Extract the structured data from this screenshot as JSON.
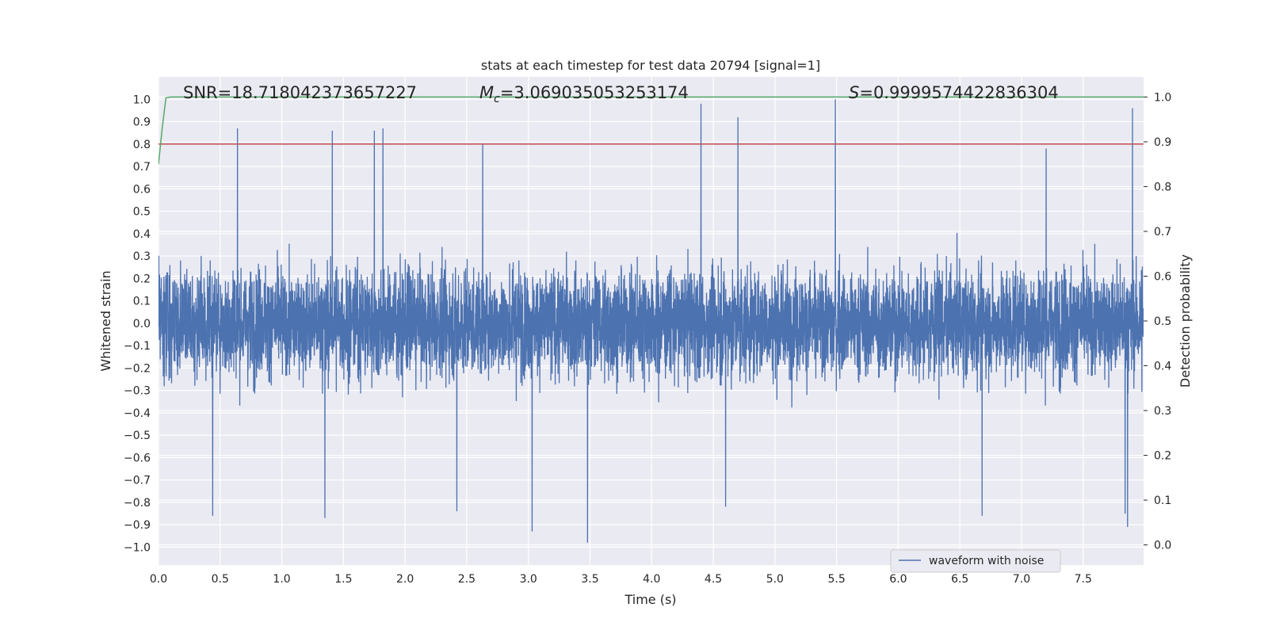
{
  "chart_data": {
    "type": "line",
    "title": "stats at each timestep for test data 20794 [signal=1]",
    "xlabel": "Time (s)",
    "ylabel": "Whitened strain",
    "y2label": "Detection probability",
    "xlim": [
      0.0,
      7.99
    ],
    "ylim": [
      -1.08,
      1.1
    ],
    "y2lim": [
      -0.045,
      1.045
    ],
    "xticks": [
      "0.0",
      "0.5",
      "1.0",
      "1.5",
      "2.0",
      "2.5",
      "3.0",
      "3.5",
      "4.0",
      "4.5",
      "5.0",
      "5.5",
      "6.0",
      "6.5",
      "7.0",
      "7.5"
    ],
    "yticks": [
      "1.0",
      "0.9",
      "0.8",
      "0.7",
      "0.6",
      "0.5",
      "0.4",
      "0.3",
      "0.2",
      "0.1",
      "0.0",
      "−0.1",
      "−0.2",
      "−0.3",
      "−0.4",
      "−0.5",
      "−0.6",
      "−0.7",
      "−0.8",
      "−0.9",
      "−1.0"
    ],
    "y2ticks": [
      "1.0",
      "0.9",
      "0.8",
      "0.7",
      "0.6",
      "0.5",
      "0.4",
      "0.3",
      "0.2",
      "0.1",
      "0.0"
    ],
    "grid": true,
    "legend_placement": "lower-right",
    "annotations": {
      "snr": "SNR=18.718042373657227",
      "mc_symbol": "M",
      "mc_sub": "c",
      "mc_value": "=3.069035053253174",
      "s_symbol": "S",
      "s_value": "=0.9999574422836304"
    },
    "series": [
      {
        "name": "waveform with noise",
        "color": "#4c72b0",
        "axis": "left",
        "envelope": "dense noisy whitened strain, bulk within about ±0.4",
        "peaks": [
          {
            "x": 0.64,
            "y": 0.87
          },
          {
            "x": 1.41,
            "y": 0.86
          },
          {
            "x": 1.75,
            "y": 0.86
          },
          {
            "x": 1.82,
            "y": 0.87
          },
          {
            "x": 2.63,
            "y": 0.8
          },
          {
            "x": 4.4,
            "y": 0.98
          },
          {
            "x": 4.7,
            "y": 0.92
          },
          {
            "x": 5.49,
            "y": 1.0
          },
          {
            "x": 7.9,
            "y": 0.96
          },
          {
            "x": 7.2,
            "y": 0.78
          },
          {
            "x": 0.44,
            "y": -0.86
          },
          {
            "x": 1.35,
            "y": -0.87
          },
          {
            "x": 3.03,
            "y": -0.93
          },
          {
            "x": 3.48,
            "y": -0.98
          },
          {
            "x": 6.68,
            "y": -0.86
          },
          {
            "x": 7.84,
            "y": -0.85
          },
          {
            "x": 7.86,
            "y": -0.91
          },
          {
            "x": 2.42,
            "y": -0.84
          },
          {
            "x": 4.6,
            "y": -0.82
          }
        ]
      },
      {
        "color": "#55a868",
        "axis": "right",
        "x": [
          0.0,
          0.03,
          0.06,
          0.1,
          0.2,
          7.99
        ],
        "values": [
          0.85,
          0.93,
          0.998,
          1.0,
          1.0,
          1.0
        ]
      },
      {
        "color": "#c44e52",
        "axis": "left",
        "x": [
          0.0,
          7.99
        ],
        "values": [
          0.8,
          0.8
        ]
      }
    ]
  }
}
